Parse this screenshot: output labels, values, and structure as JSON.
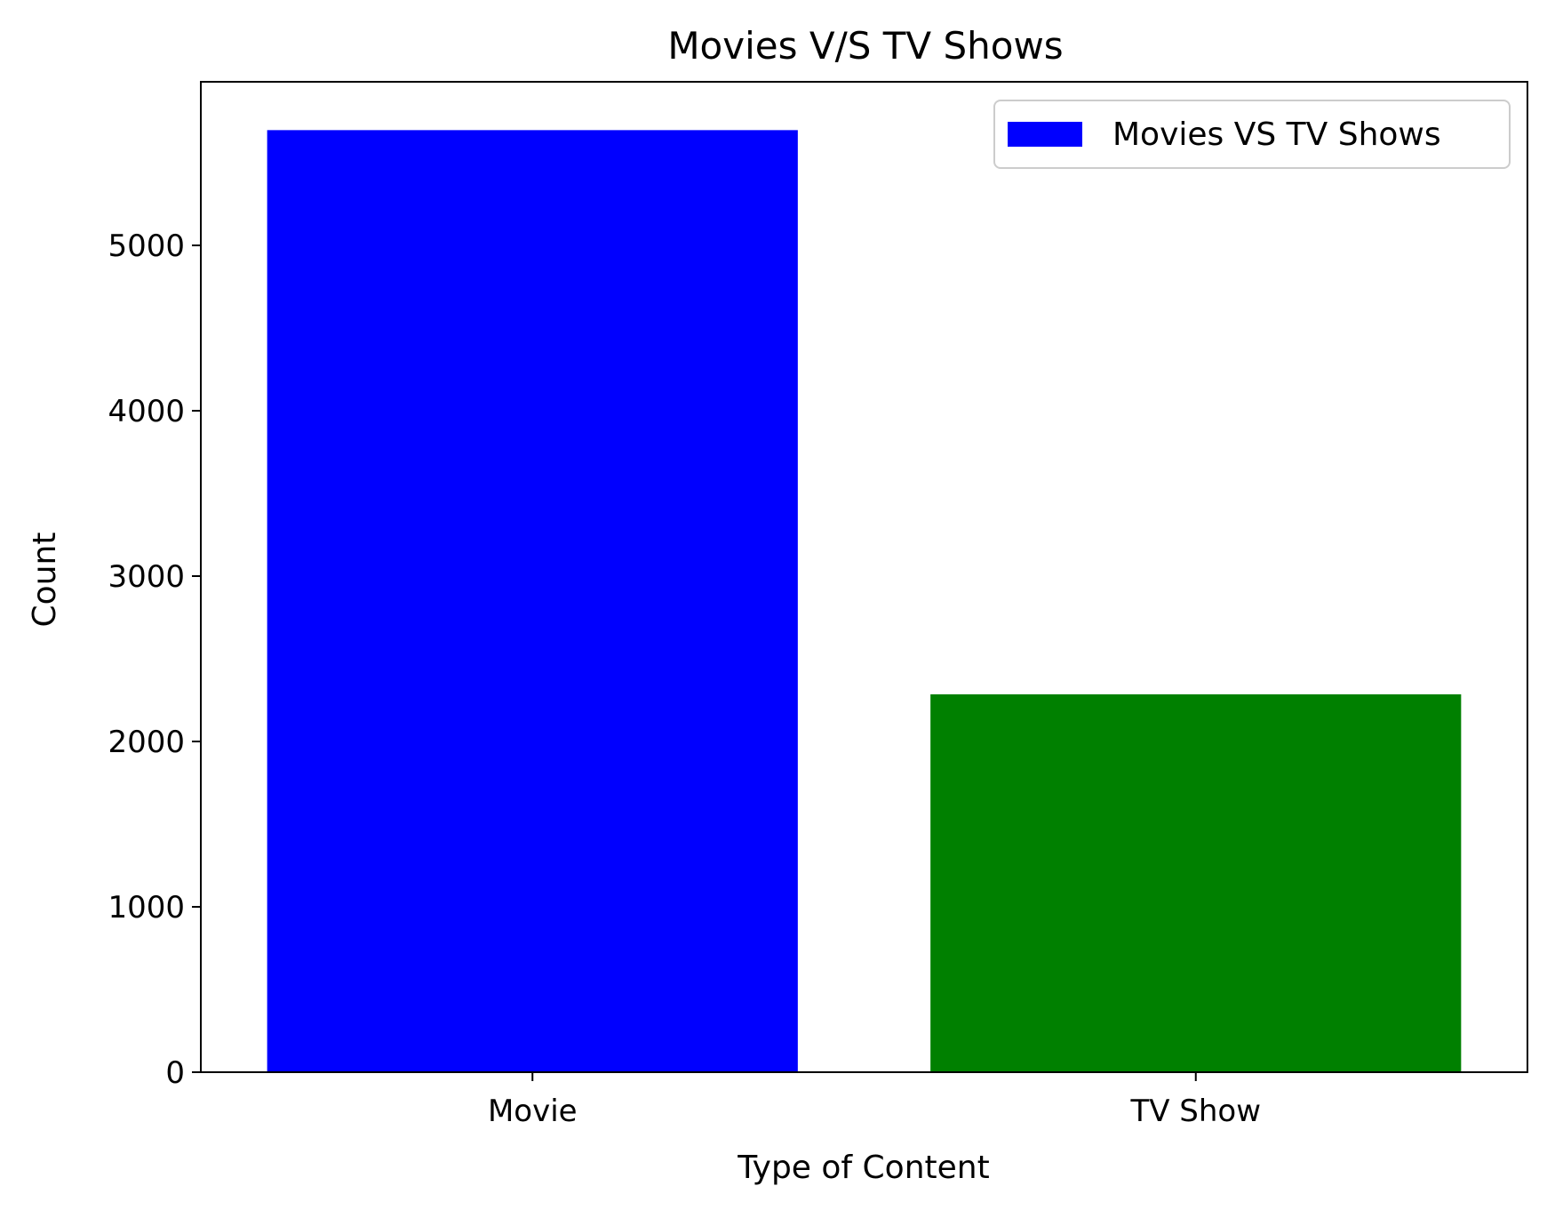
{
  "chart_data": {
    "type": "bar",
    "title": "Movies V/S TV Shows",
    "xlabel": "Type of Content",
    "ylabel": "Count",
    "categories": [
      "Movie",
      "TV Show"
    ],
    "values": [
      5697,
      2285
    ],
    "bar_colors": [
      "#0000ff",
      "#008000"
    ],
    "ylim": [
      0,
      6000
    ],
    "yticks": [
      0,
      1000,
      2000,
      3000,
      4000,
      5000
    ],
    "grid": false,
    "legend": {
      "placement": "top-right",
      "entries": [
        {
          "label": "Movies VS TV Shows",
          "color": "#0000ff"
        }
      ]
    }
  }
}
